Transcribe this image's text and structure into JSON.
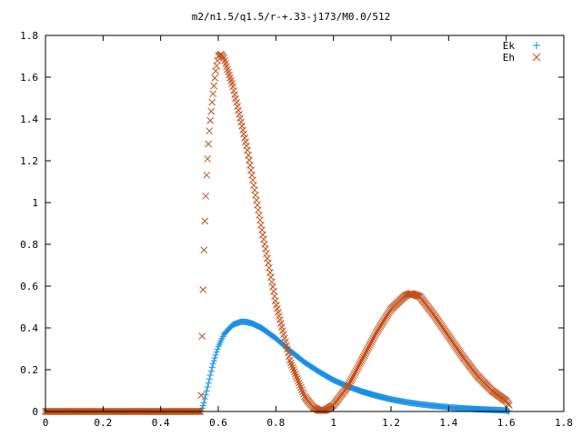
{
  "chart_data": {
    "type": "scatter",
    "title": "m2/n1.5/q1.5/r-+.33-j173/M0.0/512",
    "xlabel": "",
    "ylabel": "",
    "xlim": [
      0,
      1.8
    ],
    "ylim": [
      0,
      1.8
    ],
    "x_ticks": [
      "0",
      "0.2",
      "0.4",
      "0.6",
      "0.8",
      "1",
      "1.2",
      "1.4",
      "1.6",
      "1.8"
    ],
    "y_ticks": [
      "0",
      "0.2",
      "0.4",
      "0.6",
      "0.8",
      "1",
      "1.2",
      "1.4",
      "1.6",
      "1.8"
    ],
    "legend_position": "top-right",
    "grid": false,
    "series": [
      {
        "name": "Ek",
        "marker": "plus",
        "color": "#1a8fe6",
        "x": [
          0,
          0.05,
          0.1,
          0.15,
          0.2,
          0.25,
          0.3,
          0.35,
          0.4,
          0.45,
          0.5,
          0.54,
          0.55,
          0.56,
          0.58,
          0.6,
          0.62,
          0.65,
          0.68,
          0.7,
          0.72,
          0.75,
          0.8,
          0.85,
          0.9,
          0.95,
          1.0,
          1.05,
          1.1,
          1.15,
          1.2,
          1.25,
          1.3,
          1.35,
          1.4,
          1.45,
          1.5,
          1.55,
          1.6,
          1.61
        ],
        "y": [
          0,
          0,
          0,
          0,
          0,
          0,
          0,
          0,
          0,
          0,
          0,
          0,
          0.04,
          0.1,
          0.22,
          0.31,
          0.37,
          0.415,
          0.43,
          0.428,
          0.42,
          0.4,
          0.35,
          0.29,
          0.235,
          0.19,
          0.15,
          0.12,
          0.095,
          0.075,
          0.058,
          0.045,
          0.035,
          0.027,
          0.02,
          0.015,
          0.011,
          0.008,
          0.005,
          0
        ]
      },
      {
        "name": "Eh",
        "marker": "cross",
        "color": "#c0501a",
        "x": [
          0,
          0.05,
          0.1,
          0.15,
          0.2,
          0.25,
          0.3,
          0.35,
          0.4,
          0.45,
          0.5,
          0.54,
          0.545,
          0.55,
          0.555,
          0.56,
          0.565,
          0.57,
          0.58,
          0.59,
          0.6,
          0.61,
          0.62,
          0.65,
          0.7,
          0.75,
          0.8,
          0.85,
          0.9,
          0.93,
          0.95,
          0.97,
          1.0,
          1.05,
          1.1,
          1.15,
          1.2,
          1.25,
          1.27,
          1.3,
          1.35,
          1.4,
          1.45,
          1.5,
          1.55,
          1.6,
          1.61
        ],
        "y": [
          0,
          0,
          0,
          0,
          0,
          0,
          0,
          0,
          0,
          0,
          0,
          0,
          0.45,
          0.76,
          0.98,
          1.14,
          1.26,
          1.36,
          1.5,
          1.62,
          1.7,
          1.71,
          1.69,
          1.56,
          1.26,
          0.88,
          0.52,
          0.24,
          0.07,
          0.02,
          0.005,
          0.005,
          0.03,
          0.12,
          0.25,
          0.38,
          0.49,
          0.555,
          0.565,
          0.55,
          0.46,
          0.36,
          0.26,
          0.17,
          0.1,
          0.05,
          0.03
        ]
      }
    ]
  }
}
